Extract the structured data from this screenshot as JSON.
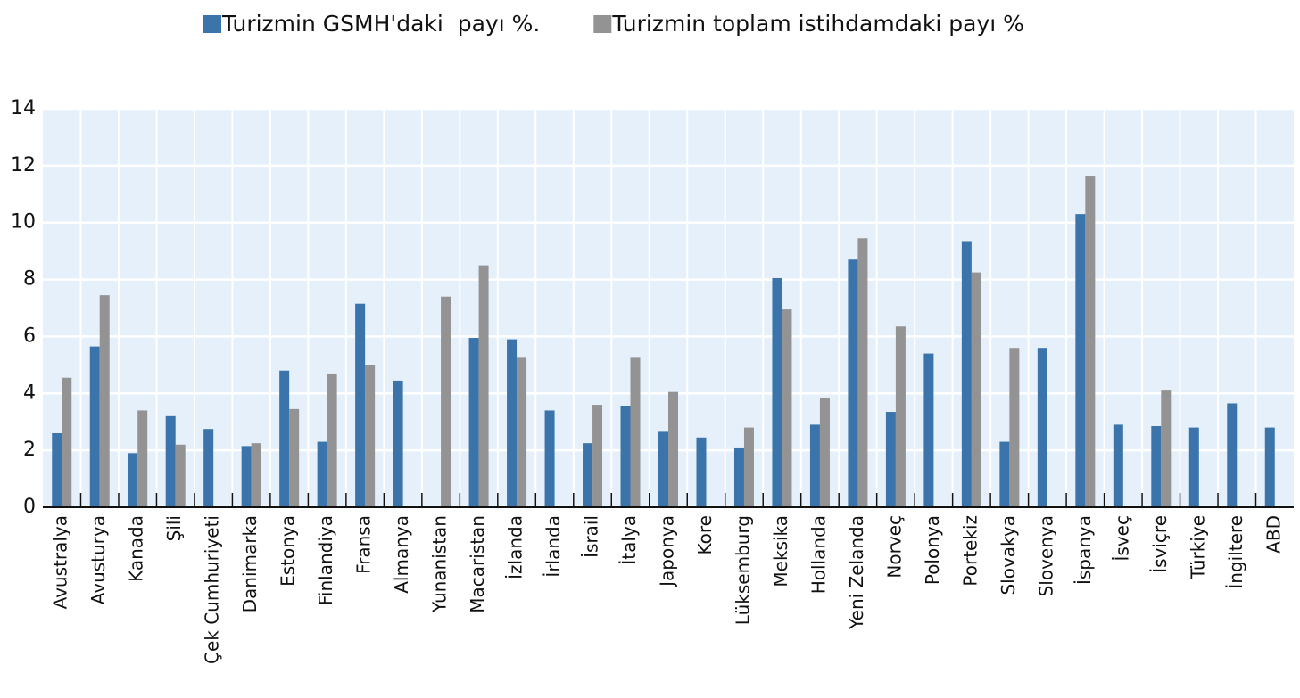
{
  "chart_data": {
    "type": "bar",
    "categories": [
      "Avustralya",
      "Avusturya",
      "Kanada",
      "Şili",
      "Çek Cumhuriyeti",
      "Danimarka",
      "Estonya",
      "Finlandiya",
      "Fransa",
      "Almanya",
      "Yunanistan",
      "Macaristan",
      "İzlanda",
      "İrlanda",
      "İsrail",
      "İtalya",
      "Japonya",
      "Kore",
      "Lüksemburg",
      "Meksika",
      "Hollanda",
      "Yeni Zelanda",
      "Norveç",
      "Polonya",
      "Portekiz",
      "Slovakya",
      "Slovenya",
      "İspanya",
      "İsveç",
      "İsviçre",
      "Türkiye",
      "İngiltere",
      "ABD"
    ],
    "series": [
      {
        "name": "Turizmin GSMH'daki  payı %.",
        "color": "#3a74aa",
        "values": [
          2.6,
          5.65,
          1.9,
          3.2,
          2.75,
          2.15,
          4.8,
          2.3,
          7.15,
          4.45,
          null,
          5.95,
          5.9,
          3.4,
          2.25,
          3.55,
          2.65,
          2.45,
          2.1,
          8.05,
          2.9,
          8.7,
          3.35,
          5.4,
          9.35,
          2.3,
          5.6,
          10.3,
          2.9,
          2.85,
          2.8,
          3.65,
          2.8
        ]
      },
      {
        "name": "Turizmin toplam istihdamdaki payı %",
        "color": "#939393",
        "values": [
          4.55,
          7.45,
          3.4,
          2.2,
          null,
          2.25,
          3.45,
          4.7,
          5.0,
          null,
          7.4,
          8.5,
          5.25,
          null,
          3.6,
          5.25,
          4.05,
          null,
          2.8,
          6.95,
          3.85,
          9.45,
          6.35,
          null,
          8.25,
          5.6,
          null,
          11.65,
          null,
          4.1,
          null,
          null,
          null
        ]
      }
    ],
    "ylim": [
      0,
      14
    ],
    "yticks": [
      0,
      2,
      4,
      6,
      8,
      10,
      12,
      14
    ],
    "grid": true,
    "legend": "top"
  }
}
